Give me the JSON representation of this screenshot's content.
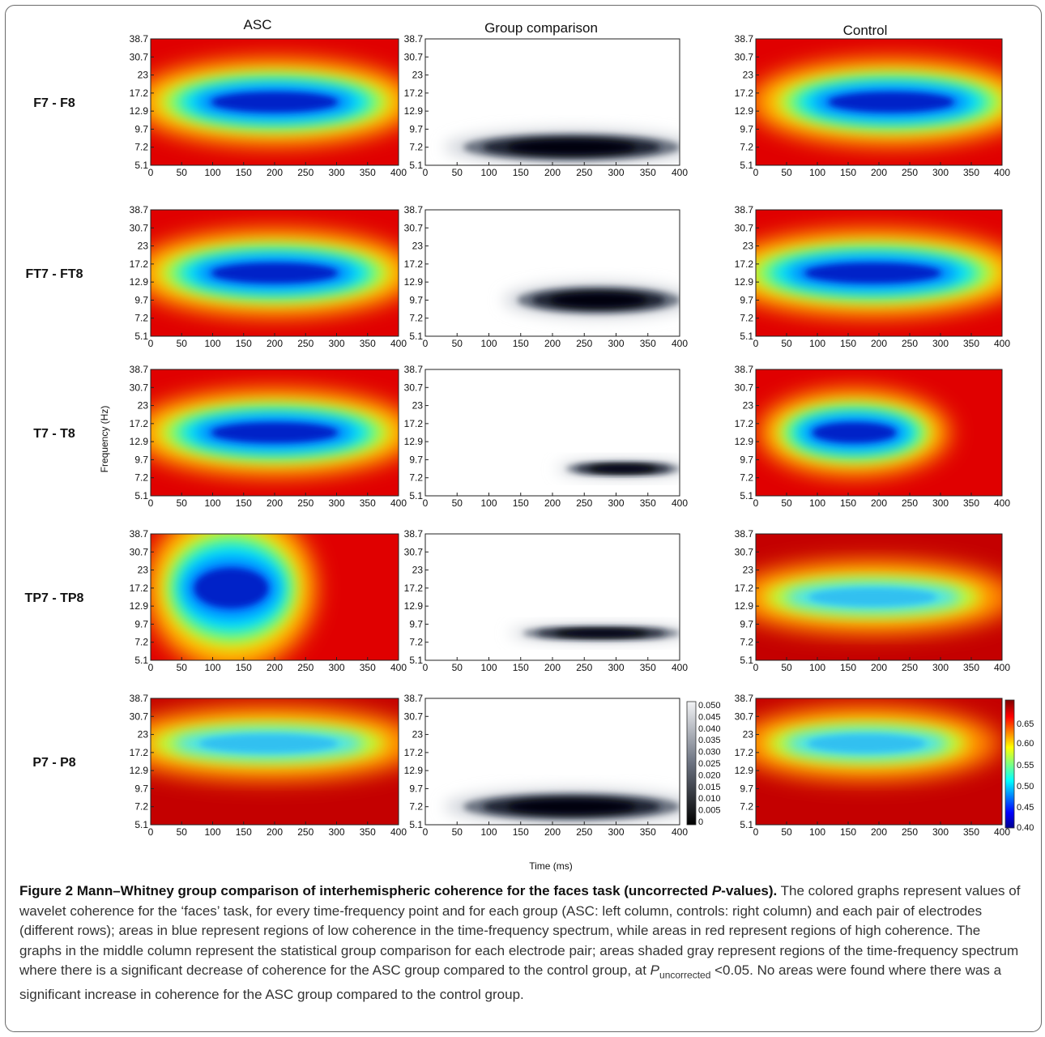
{
  "figure": {
    "columns": [
      "ASC",
      "Group comparison",
      "Control"
    ],
    "rows": [
      "F7 - F8",
      "FT7 - FT8",
      "T7 - T8",
      "TP7 - TP8",
      "P7 - P8"
    ],
    "ylabel": "Frequency (Hz)",
    "xlabel": "Time (ms)",
    "freq_ticks": [
      "38.7",
      "30.7",
      "23",
      "17.2",
      "12.9",
      "9.7",
      "7.2",
      "5.1"
    ],
    "time_ticks": [
      "0",
      "50",
      "100",
      "150",
      "200",
      "250",
      "300",
      "350",
      "400"
    ],
    "pvalue_colorbar_ticks": [
      "0.050",
      "0.045",
      "0.040",
      "0.035",
      "0.030",
      "0.025",
      "0.020",
      "0.015",
      "0.010",
      "0.005",
      "0"
    ],
    "coherence_colorbar_ticks": [
      "0.65",
      "0.60",
      "0.55",
      "0.50",
      "0.45",
      "0.40"
    ]
  },
  "chart_data": {
    "type": "heatmap",
    "x_label": "Time (ms)",
    "y_label": "Frequency (Hz)",
    "x_range": [
      0,
      400
    ],
    "y_ticks": [
      5.1,
      7.2,
      9.7,
      12.9,
      17.2,
      23,
      30.7,
      38.7
    ],
    "panels": [
      {
        "row": "F7 - F8",
        "column": "ASC",
        "metric": "wavelet coherence",
        "low_region": {
          "time": [
            80,
            320
          ],
          "freq": [
            12.9,
            17.2
          ]
        },
        "min_value": 0.4
      },
      {
        "row": "F7 - F8",
        "column": "Group comparison",
        "metric": "p-value",
        "significant_region": {
          "time": [
            0,
            400
          ],
          "freq": [
            5.1,
            9.7
          ]
        }
      },
      {
        "row": "F7 - F8",
        "column": "Control",
        "metric": "wavelet coherence",
        "low_region": {
          "time": [
            100,
            340
          ],
          "freq": [
            12.9,
            17.2
          ]
        },
        "min_value": 0.45
      },
      {
        "row": "FT7 - FT8",
        "column": "ASC",
        "metric": "wavelet coherence",
        "low_region": {
          "time": [
            80,
            320
          ],
          "freq": [
            12.9,
            17.2
          ]
        },
        "min_value": 0.4
      },
      {
        "row": "FT7 - FT8",
        "column": "Group comparison",
        "metric": "p-value",
        "significant_region": {
          "time": [
            100,
            400
          ],
          "freq": [
            7.2,
            12.9
          ]
        }
      },
      {
        "row": "FT7 - FT8",
        "column": "Control",
        "metric": "wavelet coherence",
        "low_region": {
          "time": [
            60,
            320
          ],
          "freq": [
            12.9,
            17.2
          ]
        },
        "min_value": 0.42
      },
      {
        "row": "T7 - T8",
        "column": "ASC",
        "metric": "wavelet coherence",
        "low_region": {
          "time": [
            80,
            320
          ],
          "freq": [
            12.9,
            17.2
          ]
        },
        "min_value": 0.42
      },
      {
        "row": "T7 - T8",
        "column": "Group comparison",
        "metric": "p-value",
        "significant_region": {
          "time": [
            190,
            400
          ],
          "freq": [
            7.2,
            9.7
          ]
        }
      },
      {
        "row": "T7 - T8",
        "column": "Control",
        "metric": "wavelet coherence",
        "low_region": {
          "time": [
            80,
            240
          ],
          "freq": [
            12.9,
            17.2
          ]
        },
        "min_value": 0.43
      },
      {
        "row": "TP7 - TP8",
        "column": "ASC",
        "metric": "wavelet coherence",
        "low_region": {
          "time": [
            60,
            200
          ],
          "freq": [
            12.9,
            23
          ]
        },
        "min_value": 0.48
      },
      {
        "row": "TP7 - TP8",
        "column": "Group comparison",
        "metric": "p-value",
        "significant_region": {
          "time": [
            110,
            400
          ],
          "freq": [
            7.2,
            9.7
          ]
        }
      },
      {
        "row": "TP7 - TP8",
        "column": "Control",
        "metric": "wavelet coherence",
        "low_region": {
          "time": [
            60,
            320
          ],
          "freq": [
            12.9,
            17.2
          ]
        },
        "min_value": 0.5
      },
      {
        "row": "P7 - P8",
        "column": "ASC",
        "metric": "wavelet coherence",
        "low_region": {
          "time": [
            50,
            330
          ],
          "freq": [
            17.2,
            23
          ]
        },
        "min_value": 0.52
      },
      {
        "row": "P7 - P8",
        "column": "Group comparison",
        "metric": "p-value",
        "significant_region": {
          "time": [
            0,
            400
          ],
          "freq": [
            5.1,
            9.7
          ]
        }
      },
      {
        "row": "P7 - P8",
        "column": "Control",
        "metric": "wavelet coherence",
        "low_region": {
          "time": [
            60,
            300
          ],
          "freq": [
            17.2,
            23
          ]
        },
        "min_value": 0.53
      }
    ],
    "colorbars": [
      {
        "name": "p-value",
        "range": [
          0,
          0.05
        ]
      },
      {
        "name": "coherence",
        "range": [
          0.4,
          0.68
        ]
      }
    ]
  },
  "caption": {
    "label": "Figure 2",
    "title_a": " Mann–Whitney group comparison of interhemispheric coherence for the faces task (uncorrected ",
    "title_p": "P",
    "title_b": "-values).",
    "body_a": " The colored graphs represent values of wavelet coherence for the ‘faces’ task, for every time-frequency point and for each group (ASC: left column, controls: right column) and each pair of electrodes (different rows); areas in blue represent regions of low coherence in the time-frequency spectrum, while areas in red represent regions of high coherence. The graphs in the middle column represent the statistical group comparison for each electrode pair; areas shaded gray represent regions of the time-frequency spectrum where there is a significant decrease of coherence for the ASC group compared to the control group, at ",
    "p_symbol": "P",
    "p_sub": "uncorrected",
    "body_b": " <0.05. No areas were found where there was a significant increase in coherence for the ASC group compared to the control group."
  }
}
